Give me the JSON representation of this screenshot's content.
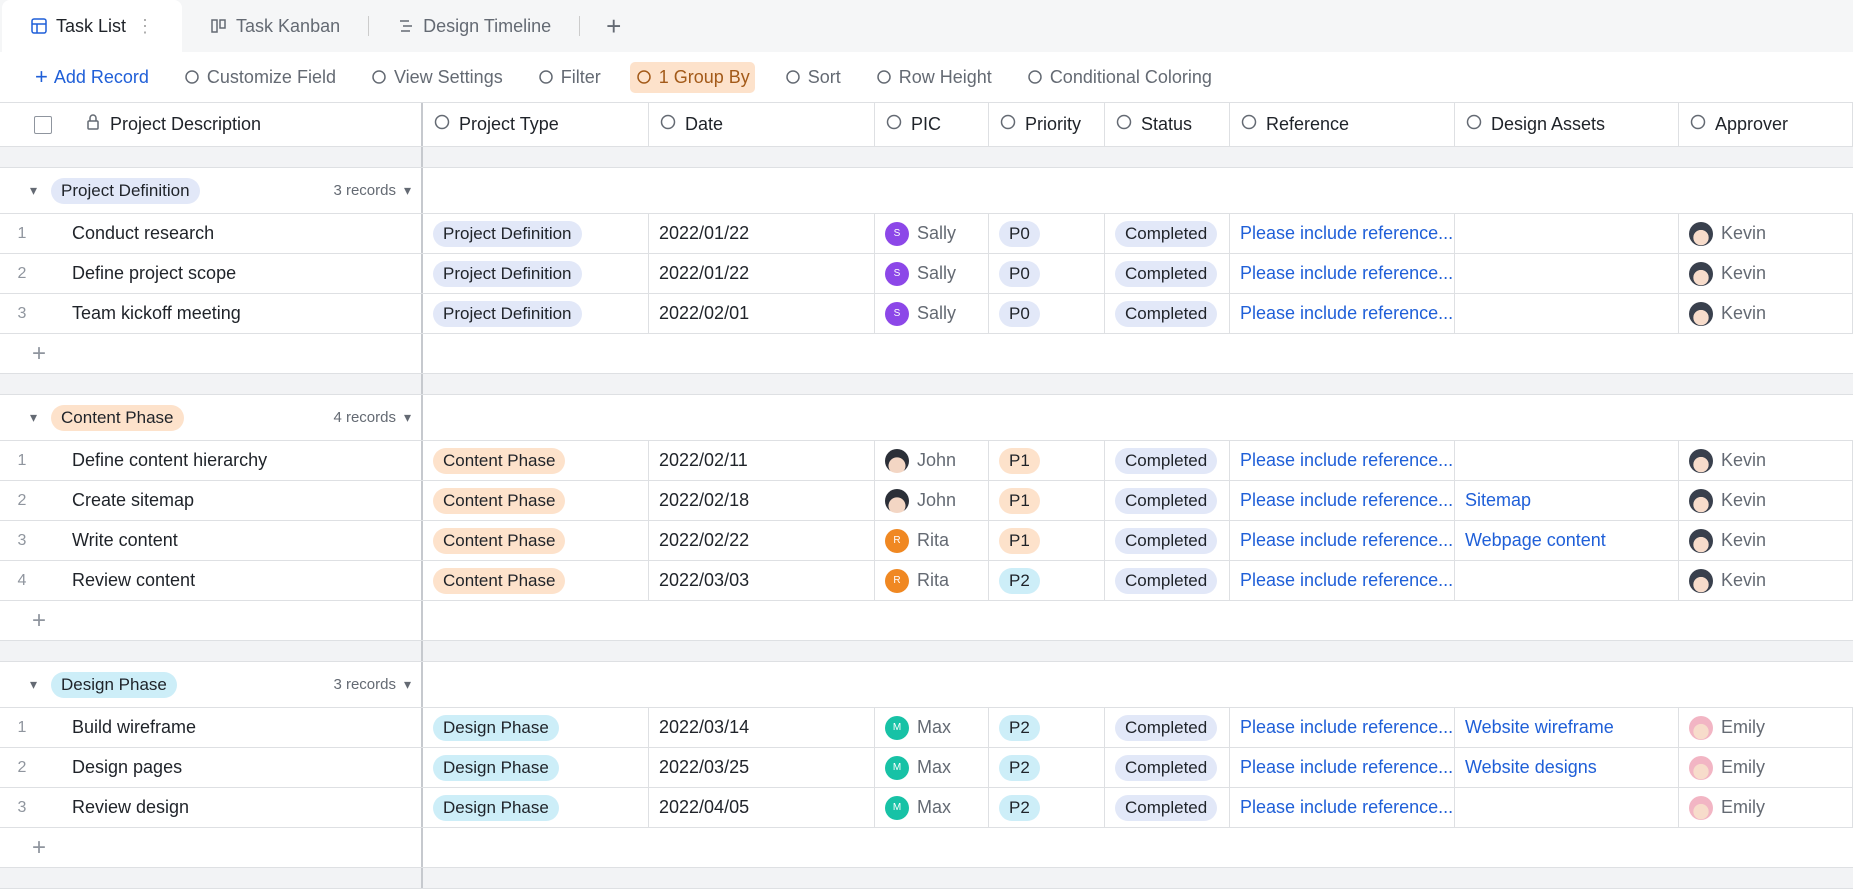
{
  "tabs": [
    "Task List",
    "Task Kanban",
    "Design Timeline"
  ],
  "toolbar": [
    "Add Record",
    "Customize Field",
    "View Settings",
    "Filter",
    "1 Group By",
    "Sort",
    "Row Height",
    "Conditional Coloring"
  ],
  "columns": [
    "Project Description",
    "Project Type",
    "Date",
    "PIC",
    "Priority",
    "Status",
    "Reference",
    "Design Assets",
    "Approver"
  ],
  "priority_colors": {
    "P0": "#e2e8f8",
    "P1": "#fde2cb",
    "P2": "#cdeef8"
  },
  "status_color": "#e2e8f8",
  "groups": [
    {
      "name": "Project Definition",
      "count": "3 records",
      "color": "#e2e8f8",
      "approver_avatar": "#39404d",
      "rows": [
        {
          "n": 1,
          "cells": [
            "Conduct research",
            "Project Definition",
            "2022/01/22",
            "Sally",
            "P0",
            "Completed",
            "Please include reference...",
            null,
            "Kevin"
          ],
          "avatar": {
            "text": "S",
            "color": "#8c47e8"
          }
        },
        {
          "n": 2,
          "cells": [
            "Define project scope",
            "Project Definition",
            "2022/01/22",
            "Sally",
            "P0",
            "Completed",
            "Please include reference...",
            null,
            "Kevin"
          ],
          "avatar": {
            "text": "S",
            "color": "#8c47e8"
          }
        },
        {
          "n": 3,
          "cells": [
            "Team kickoff meeting",
            "Project Definition",
            "2022/02/01",
            "Sally",
            "P0",
            "Completed",
            "Please include reference...",
            null,
            "Kevin"
          ],
          "avatar": {
            "text": "S",
            "color": "#8c47e8"
          }
        }
      ]
    },
    {
      "name": "Content Phase",
      "count": "4 records",
      "color": "#fde2cb",
      "approver_avatar": "#39404d",
      "rows": [
        {
          "n": 1,
          "cells": [
            "Define content hierarchy",
            "Content Phase",
            "2022/02/11",
            "John",
            "P1",
            "Completed",
            "Please include reference...",
            null,
            "Kevin"
          ]
        },
        {
          "n": 2,
          "cells": [
            "Create sitemap",
            "Content Phase",
            "2022/02/18",
            "John",
            "P1",
            "Completed",
            "Please include reference...",
            "Sitemap",
            "Kevin"
          ]
        },
        {
          "n": 3,
          "cells": [
            "Write content",
            "Content Phase",
            "2022/02/22",
            "Rita",
            "P1",
            "Completed",
            "Please include reference...",
            "Webpage content",
            "Kevin"
          ],
          "avatar": {
            "text": "R",
            "color": "#f08822"
          }
        },
        {
          "n": 4,
          "cells": [
            "Review content",
            "Content Phase",
            "2022/03/03",
            "Rita",
            "P2",
            "Completed",
            "Please include reference...",
            null,
            "Kevin"
          ],
          "avatar": {
            "text": "R",
            "color": "#f08822"
          }
        }
      ]
    },
    {
      "name": "Design Phase",
      "count": "3 records",
      "color": "#cdeef8",
      "approver_avatar": "#f2b5c4",
      "rows": [
        {
          "n": 1,
          "cells": [
            "Build wireframe",
            "Design Phase",
            "2022/03/14",
            "Max",
            "P2",
            "Completed",
            "Please include reference...",
            "Website wireframe",
            "Emily"
          ],
          "avatar": {
            "text": "M",
            "color": "#17c2a6"
          }
        },
        {
          "n": 2,
          "cells": [
            "Design pages",
            "Design Phase",
            "2022/03/25",
            "Max",
            "P2",
            "Completed",
            "Please include reference...",
            "Website designs",
            "Emily"
          ],
          "avatar": {
            "text": "M",
            "color": "#17c2a6"
          }
        },
        {
          "n": 3,
          "cells": [
            "Review design",
            "Design Phase",
            "2022/04/05",
            "Max",
            "P2",
            "Completed",
            "Please include reference...",
            null,
            "Emily"
          ],
          "avatar": {
            "text": "M",
            "color": "#17c2a6"
          }
        }
      ]
    }
  ]
}
